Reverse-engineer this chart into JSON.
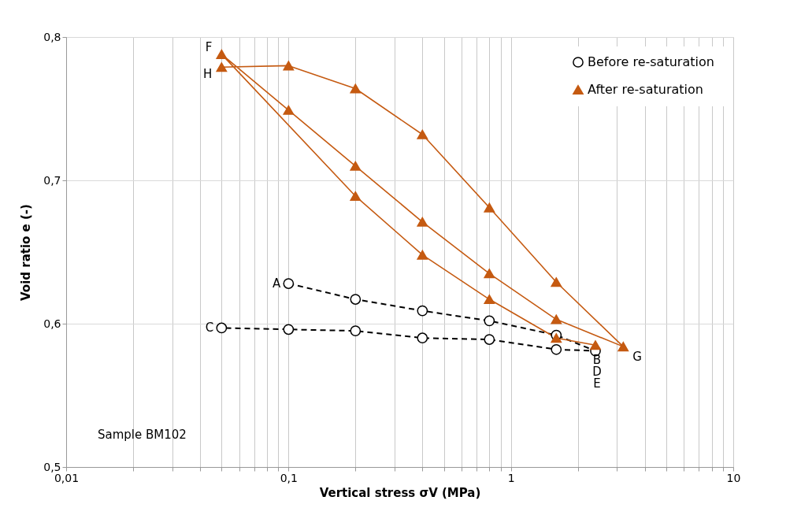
{
  "chart_data": {
    "type": "line",
    "xlabel": "Vertical stress σV (MPa)",
    "ylabel": "Void ratio e (-)",
    "log": "x",
    "grid": true,
    "legend": "top right",
    "xlim": [
      0.01,
      10
    ],
    "ylim": [
      0.5,
      0.8
    ],
    "xticks": [
      {
        "value": 0.01,
        "label": "0,01"
      },
      {
        "value": 0.02,
        "label": null
      },
      {
        "value": 0.03,
        "label": null
      },
      {
        "value": 0.04,
        "label": null
      },
      {
        "value": 0.05,
        "label": null
      },
      {
        "value": 0.06,
        "label": null
      },
      {
        "value": 0.07,
        "label": null
      },
      {
        "value": 0.08,
        "label": null
      },
      {
        "value": 0.09,
        "label": null
      },
      {
        "value": 0.1,
        "label": "0,1"
      },
      {
        "value": 0.2,
        "label": null
      },
      {
        "value": 0.3,
        "label": null
      },
      {
        "value": 0.4,
        "label": null
      },
      {
        "value": 0.5,
        "label": null
      },
      {
        "value": 0.6,
        "label": null
      },
      {
        "value": 0.7,
        "label": null
      },
      {
        "value": 0.8,
        "label": null
      },
      {
        "value": 0.9,
        "label": null
      },
      {
        "value": 1,
        "label": "1"
      },
      {
        "value": 2,
        "label": null
      },
      {
        "value": 3,
        "label": null
      },
      {
        "value": 4,
        "label": null
      },
      {
        "value": 5,
        "label": null
      },
      {
        "value": 6,
        "label": null
      },
      {
        "value": 7,
        "label": null
      },
      {
        "value": 8,
        "label": null
      },
      {
        "value": 9,
        "label": null
      },
      {
        "value": 10,
        "label": "10"
      }
    ],
    "yticks": [
      {
        "value": 0.5,
        "label": "0,5"
      },
      {
        "value": 0.6,
        "label": "0,6"
      },
      {
        "value": 0.7,
        "label": "0,7"
      },
      {
        "value": 0.8,
        "label": "0,8"
      }
    ],
    "series": [
      {
        "name": "Before re-saturation",
        "color": "#000000",
        "marker": "circle",
        "line_style": "dashed",
        "x": [
          0.1,
          0.2,
          0.4,
          0.8,
          1.6,
          2.4,
          1.6,
          0.8,
          0.4,
          0.2,
          0.1,
          0.05
        ],
        "values": [
          0.628,
          0.617,
          0.609,
          0.602,
          0.592,
          0.581,
          0.582,
          0.589,
          0.59,
          0.595,
          0.596,
          0.597
        ]
      },
      {
        "name": "After re-saturation",
        "color": "#c55a11",
        "marker": "triangle",
        "line_style": "solid",
        "x": [
          2.4,
          1.6,
          0.8,
          0.4,
          0.2,
          0.05,
          0.1,
          0.2,
          0.4,
          0.8,
          1.6,
          3.2,
          1.6,
          0.8,
          0.4,
          0.2,
          0.1,
          0.05
        ],
        "values": [
          0.585,
          0.59,
          0.617,
          0.648,
          0.689,
          0.788,
          0.749,
          0.71,
          0.671,
          0.635,
          0.603,
          0.584,
          0.629,
          0.681,
          0.732,
          0.764,
          0.78,
          0.779
        ]
      }
    ],
    "annotations": [
      {
        "text": "A",
        "x": 0.1,
        "y": 0.628
      },
      {
        "text": "B",
        "x": 2.4,
        "y": 0.581
      },
      {
        "text": "C",
        "x": 0.05,
        "y": 0.597
      },
      {
        "text": "D",
        "x": 2.4,
        "y": 0.581
      },
      {
        "text": "E",
        "x": 2.4,
        "y": 0.585
      },
      {
        "text": "F",
        "x": 0.05,
        "y": 0.788
      },
      {
        "text": "G",
        "x": 3.2,
        "y": 0.584
      },
      {
        "text": "H",
        "x": 0.05,
        "y": 0.779
      },
      "Sample BM102"
    ]
  }
}
